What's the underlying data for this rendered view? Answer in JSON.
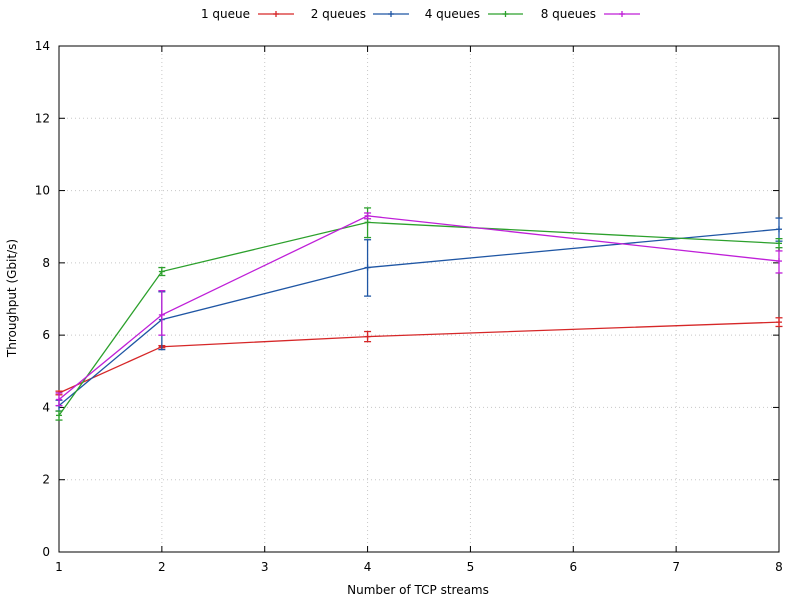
{
  "chart_data": {
    "type": "line",
    "title": "",
    "xlabel": "Number of TCP streams",
    "ylabel": "Throughput (Gbit/s)",
    "xlim": [
      1,
      8
    ],
    "ylim": [
      0,
      14
    ],
    "xticks": [
      1,
      2,
      3,
      4,
      5,
      6,
      7,
      8
    ],
    "yticks": [
      0,
      2,
      4,
      6,
      8,
      10,
      12,
      14
    ],
    "grid": true,
    "legend_position": "top-center",
    "series": [
      {
        "name": "1 queue",
        "color": "#d62728",
        "points": [
          {
            "x": 1,
            "y": 4.4,
            "lo": 4.35,
            "hi": 4.45
          },
          {
            "x": 2,
            "y": 5.68,
            "lo": 5.65,
            "hi": 5.71
          },
          {
            "x": 4,
            "y": 5.96,
            "lo": 5.82,
            "hi": 6.1
          },
          {
            "x": 8,
            "y": 6.36,
            "lo": 6.24,
            "hi": 6.48
          }
        ]
      },
      {
        "name": "2 queues",
        "color": "#1f56a4",
        "points": [
          {
            "x": 1,
            "y": 4.05,
            "lo": 3.9,
            "hi": 4.2
          },
          {
            "x": 2,
            "y": 6.43,
            "lo": 5.6,
            "hi": 7.2
          },
          {
            "x": 4,
            "y": 7.87,
            "lo": 7.08,
            "hi": 8.64
          },
          {
            "x": 8,
            "y": 8.93,
            "lo": 8.6,
            "hi": 9.24
          }
        ]
      },
      {
        "name": "4 queues",
        "color": "#2ca02c",
        "points": [
          {
            "x": 1,
            "y": 3.78,
            "lo": 3.65,
            "hi": 3.9
          },
          {
            "x": 2,
            "y": 7.76,
            "lo": 7.65,
            "hi": 7.87
          },
          {
            "x": 4,
            "y": 9.12,
            "lo": 8.7,
            "hi": 9.52
          },
          {
            "x": 8,
            "y": 8.54,
            "lo": 8.42,
            "hi": 8.67
          }
        ]
      },
      {
        "name": "8 queues",
        "color": "#bf1fd8",
        "points": [
          {
            "x": 1,
            "y": 4.22,
            "lo": 4.05,
            "hi": 4.4
          },
          {
            "x": 2,
            "y": 6.56,
            "lo": 6.0,
            "hi": 7.23
          },
          {
            "x": 4,
            "y": 9.3,
            "lo": 9.22,
            "hi": 9.38
          },
          {
            "x": 8,
            "y": 8.05,
            "lo": 7.72,
            "hi": 8.33
          }
        ]
      }
    ]
  }
}
